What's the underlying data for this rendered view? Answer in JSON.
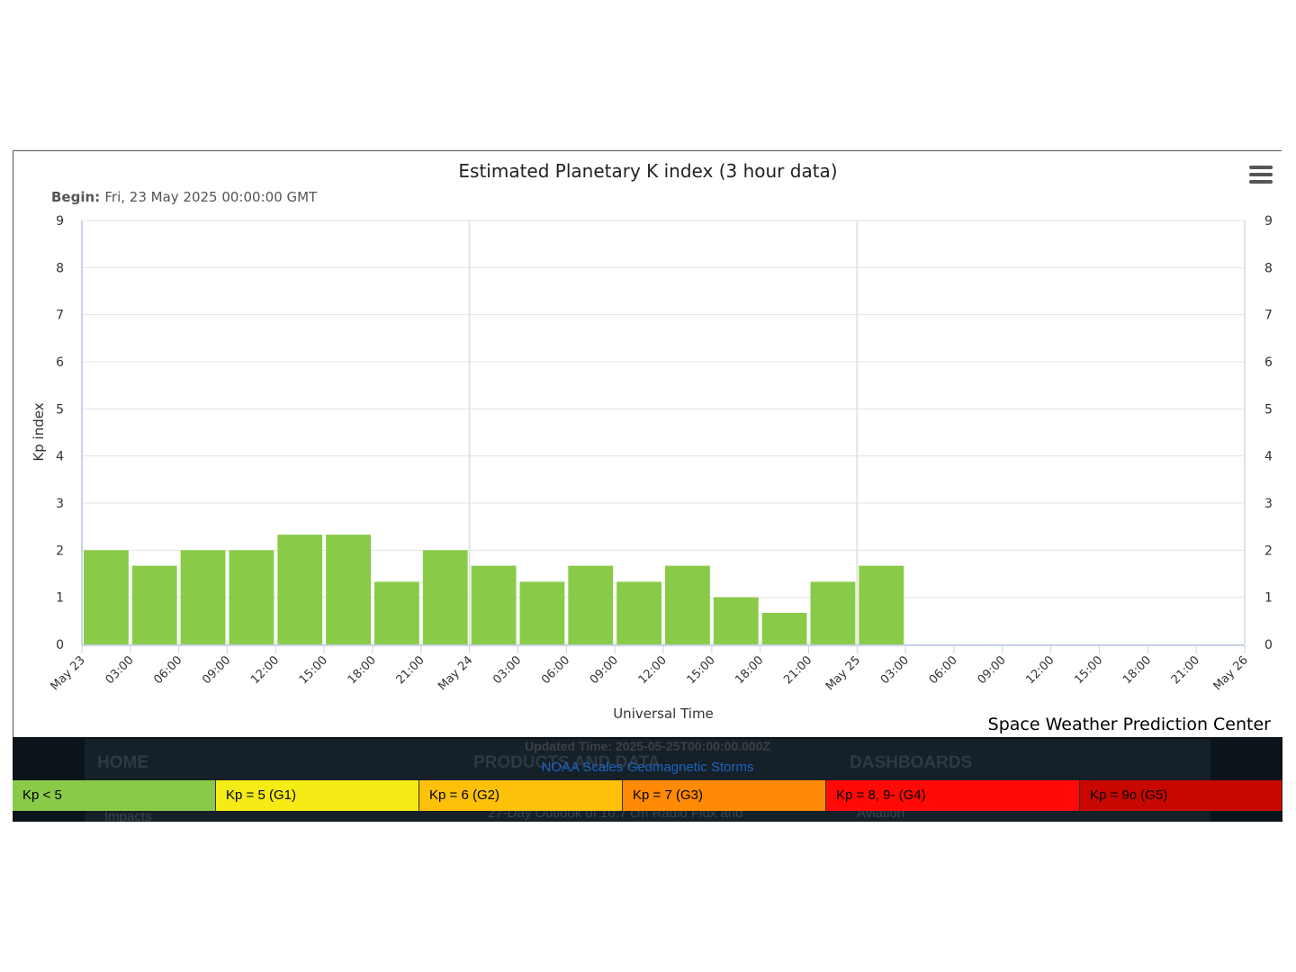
{
  "chart_data": {
    "type": "bar",
    "title": "Estimated Planetary K index (3 hour data)",
    "subtitle_label": "Begin:",
    "subtitle_value": "Fri, 23 May 2025 00:00:00 GMT",
    "xlabel": "Universal Time",
    "ylabel": "Kp index",
    "ylim": [
      0,
      9
    ],
    "yticks": [
      "0",
      "1",
      "2",
      "3",
      "4",
      "5",
      "6",
      "7",
      "8",
      "9"
    ],
    "xticks": [
      "May 23",
      "03:00",
      "06:00",
      "09:00",
      "12:00",
      "15:00",
      "18:00",
      "21:00",
      "May 24",
      "03:00",
      "06:00",
      "09:00",
      "12:00",
      "15:00",
      "18:00",
      "21:00",
      "May 25",
      "03:00",
      "06:00",
      "09:00",
      "12:00",
      "15:00",
      "18:00",
      "21:00",
      "May 26"
    ],
    "x_start": "2025-05-23T00:00Z",
    "interval_hours": 3,
    "values": [
      2.0,
      1.67,
      2.0,
      2.0,
      2.33,
      2.33,
      1.33,
      2.0,
      1.67,
      1.33,
      1.67,
      1.33,
      1.67,
      1.0,
      0.67,
      1.33,
      1.67
    ],
    "bar_color": "#89cb48",
    "grid": true,
    "legend": "bottom"
  },
  "credit": "Space Weather Prediction Center",
  "footer": {
    "nav_home": "HOME",
    "nav_products": "PRODUCTS AND DATA",
    "nav_dashboards": "DASHBOARDS",
    "nav_impacts": "Impacts",
    "nav_outlook": "27-Day Outlook of 10.7 cm Radio Flux and",
    "nav_aviation": "Aviation",
    "updated": "Updated Time: 2025-05-25T00:00:00.000Z",
    "scales_title": "NOAA Scales Geomagnetic Storms",
    "legend": [
      {
        "label": "Kp < 5",
        "color": "#89cb48"
      },
      {
        "label": "Kp = 5 (G1)",
        "color": "#f5eb16"
      },
      {
        "label": "Kp = 6 (G2)",
        "color": "#fdc10a"
      },
      {
        "label": "Kp = 7 (G3)",
        "color": "#ff8a05"
      },
      {
        "label": "Kp = 8, 9- (G4)",
        "color": "#ff0a06"
      },
      {
        "label": "Kp = 9o (G5)",
        "color": "#c80702"
      }
    ]
  }
}
